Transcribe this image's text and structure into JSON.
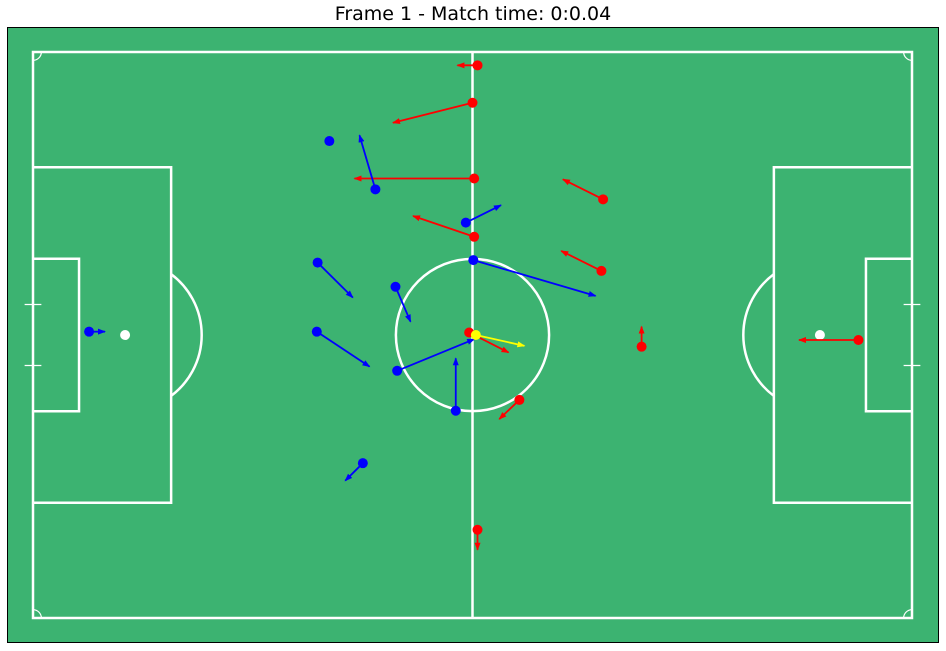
{
  "chart_data": {
    "type": "scatter",
    "title": "Frame 1 - Match time: 0:0.04",
    "pitch_length": 105,
    "pitch_width": 68,
    "xlim": [
      -52.5,
      52.5
    ],
    "ylim": [
      -34,
      34
    ],
    "colors": {
      "pitch": "#3cb371",
      "lines": "#ffffff",
      "home": "#ff0000",
      "away": "#0000ff",
      "ball": "#ffff00",
      "frame": "#000000"
    },
    "series": [
      {
        "team": "home",
        "points": [
          {
            "x": 0.6,
            "y": 32.4,
            "dx": -2.4,
            "dy": 0.0
          },
          {
            "x": 0.0,
            "y": 27.9,
            "dx": -9.5,
            "dy": -2.4
          },
          {
            "x": 0.2,
            "y": 18.8,
            "dx": -14.3,
            "dy": 0.0
          },
          {
            "x": 0.2,
            "y": 11.8,
            "dx": -7.3,
            "dy": 2.5
          },
          {
            "x": 15.6,
            "y": 16.3,
            "dx": -4.8,
            "dy": 2.4
          },
          {
            "x": 15.4,
            "y": 7.7,
            "dx": -4.8,
            "dy": 2.4
          },
          {
            "x": -0.4,
            "y": 0.3,
            "dx": 4.7,
            "dy": -2.4
          },
          {
            "x": 20.2,
            "y": -1.4,
            "dx": 0.0,
            "dy": 2.4
          },
          {
            "x": 5.6,
            "y": -7.8,
            "dx": -2.4,
            "dy": -2.3
          },
          {
            "x": 0.6,
            "y": -23.4,
            "dx": 0.0,
            "dy": -2.4
          },
          {
            "x": 46.1,
            "y": -0.6,
            "dx": -7.1,
            "dy": 0.0
          }
        ]
      },
      {
        "team": "away",
        "points": [
          {
            "x": -17.1,
            "y": 23.3,
            "dx": 0.0,
            "dy": 0.0
          },
          {
            "x": -11.6,
            "y": 17.5,
            "dx": -1.9,
            "dy": 6.5
          },
          {
            "x": -0.8,
            "y": 13.5,
            "dx": 4.2,
            "dy": 2.1
          },
          {
            "x": 0.1,
            "y": 9.0,
            "dx": 14.6,
            "dy": -4.3
          },
          {
            "x": -18.5,
            "y": 8.7,
            "dx": 4.2,
            "dy": -4.2
          },
          {
            "x": -9.2,
            "y": 5.8,
            "dx": 1.8,
            "dy": -4.2
          },
          {
            "x": -18.6,
            "y": 0.4,
            "dx": 6.3,
            "dy": -4.2
          },
          {
            "x": -9.0,
            "y": -4.3,
            "dx": 9.2,
            "dy": 3.8
          },
          {
            "x": -2.0,
            "y": -9.1,
            "dx": 0.0,
            "dy": 6.3
          },
          {
            "x": -13.1,
            "y": -15.4,
            "dx": -2.1,
            "dy": -2.1
          },
          {
            "x": -45.8,
            "y": 0.4,
            "dx": 1.9,
            "dy": 0.0
          }
        ]
      },
      {
        "team": "ball",
        "points": [
          {
            "x": 0.4,
            "y": 0.0,
            "dx": 5.8,
            "dy": -1.3
          }
        ]
      }
    ]
  }
}
